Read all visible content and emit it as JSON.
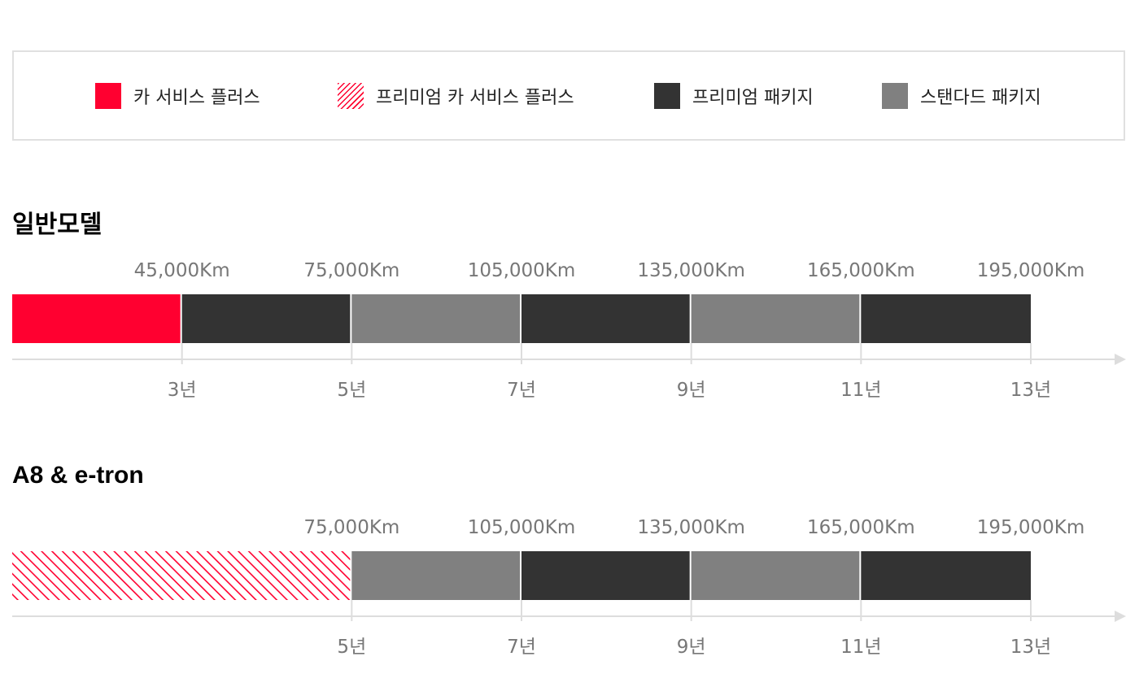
{
  "colors": {
    "car_service_plus": "#ff0030",
    "premium_package": "#333333",
    "standard_package": "#808080",
    "axis": "#dddddd"
  },
  "legend": {
    "items": [
      {
        "key": "car_service_plus",
        "label": "카 서비스 플러스"
      },
      {
        "key": "premium_car_service_plus",
        "label": "프리미엄 카 서비스 플러스"
      },
      {
        "key": "premium_package",
        "label": "프리미엄 패키지"
      },
      {
        "key": "standard_package",
        "label": "스탠다드 패키지"
      }
    ]
  },
  "chart_data": [
    {
      "type": "bar",
      "title": "일반모델",
      "x_unit_label": "년",
      "xlim": [
        1,
        13
      ],
      "segments": [
        {
          "from": 1,
          "to": 3,
          "package": "car_service_plus",
          "km": "45,000Km",
          "year_label": "3년"
        },
        {
          "from": 3,
          "to": 5,
          "package": "premium_package",
          "km": "75,000Km",
          "year_label": "5년"
        },
        {
          "from": 5,
          "to": 7,
          "package": "standard_package",
          "km": "105,000Km",
          "year_label": "7년"
        },
        {
          "from": 7,
          "to": 9,
          "package": "premium_package",
          "km": "135,000Km",
          "year_label": "9년"
        },
        {
          "from": 9,
          "to": 11,
          "package": "standard_package",
          "km": "165,000Km",
          "year_label": "11년"
        },
        {
          "from": 11,
          "to": 13,
          "package": "premium_package",
          "km": "195,000Km",
          "year_label": "13년"
        }
      ]
    },
    {
      "type": "bar",
      "title": "A8 & e-tron",
      "x_unit_label": "년",
      "xlim": [
        1,
        13
      ],
      "segments": [
        {
          "from": 1,
          "to": 5,
          "package": "premium_car_service_plus",
          "km": "75,000Km",
          "year_label": "5년"
        },
        {
          "from": 5,
          "to": 7,
          "package": "standard_package",
          "km": "105,000Km",
          "year_label": "7년"
        },
        {
          "from": 7,
          "to": 9,
          "package": "premium_package",
          "km": "135,000Km",
          "year_label": "9년"
        },
        {
          "from": 9,
          "to": 11,
          "package": "standard_package",
          "km": "165,000Km",
          "year_label": "11년"
        },
        {
          "from": 11,
          "to": 13,
          "package": "premium_package",
          "km": "195,000Km",
          "year_label": "13년"
        }
      ]
    }
  ]
}
